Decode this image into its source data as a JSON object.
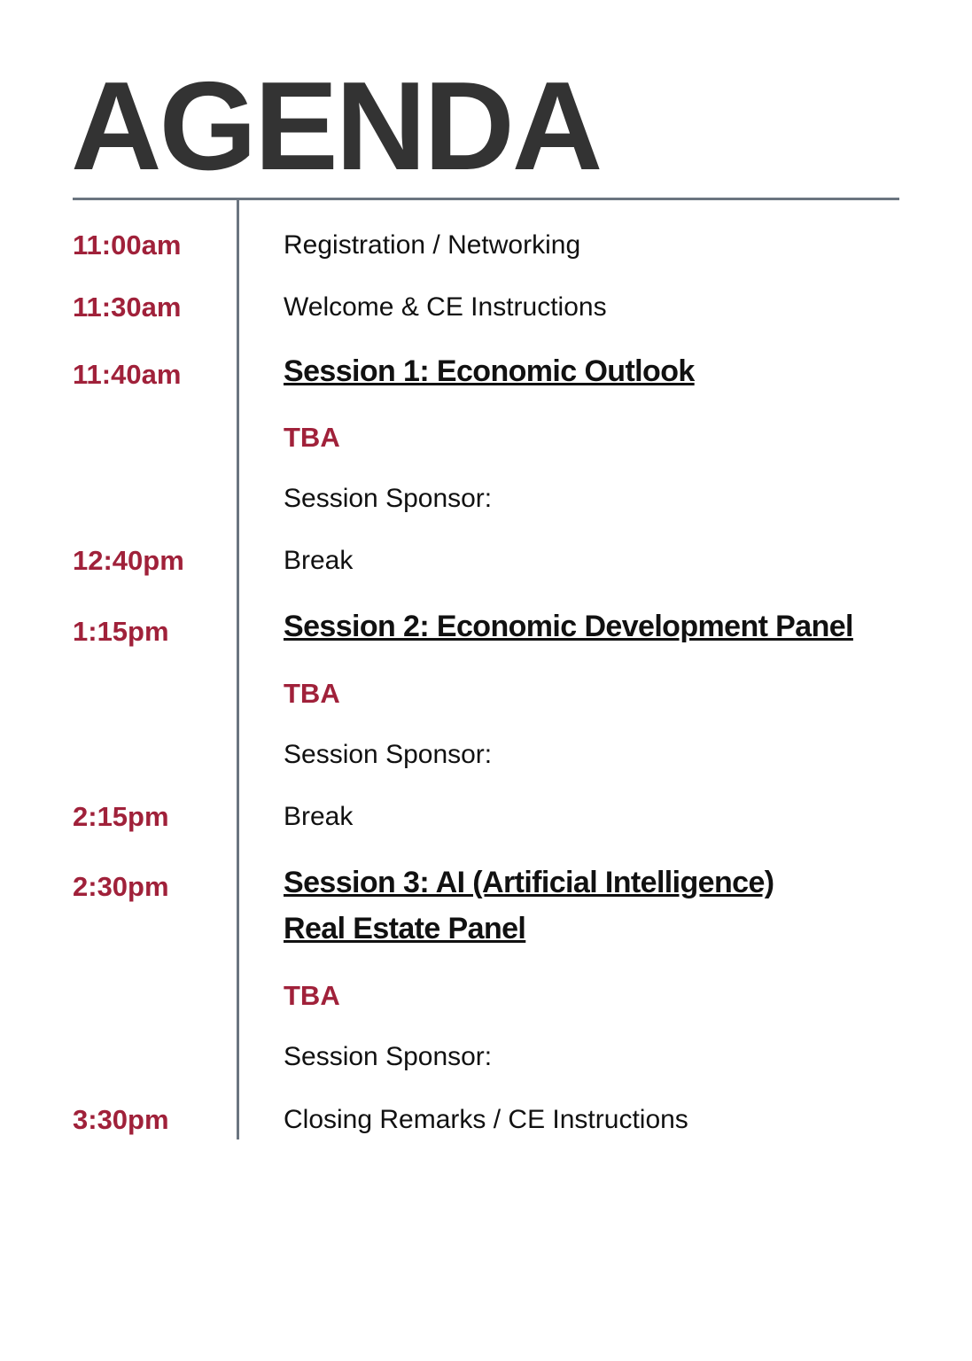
{
  "header": {
    "title": "AGENDA"
  },
  "agenda": [
    {
      "time": "11:00am",
      "text": "Registration / Networking"
    },
    {
      "time": "11:30am",
      "text": "Welcome & CE Instructions"
    },
    {
      "time": "11:40am",
      "title": "Session 1: Economic Outlook"
    },
    {
      "speaker": "TBA"
    },
    {
      "text": "Session Sponsor:"
    },
    {
      "time": "12:40pm",
      "text": "Break"
    },
    {
      "time": "1:15pm",
      "title": "Session 2: Economic Development Panel"
    },
    {
      "speaker": "TBA"
    },
    {
      "text": "Session Sponsor:"
    },
    {
      "time": "2:15pm",
      "text": "Break"
    },
    {
      "time": "2:30pm",
      "title_lines": [
        "Session 3: AI (Artificial Intelligence)",
        "Real Estate Panel"
      ]
    },
    {
      "speaker": "TBA"
    },
    {
      "text": "Session Sponsor:"
    },
    {
      "time": "3:30pm",
      "text": "Closing Remarks / CE Instructions"
    }
  ]
}
